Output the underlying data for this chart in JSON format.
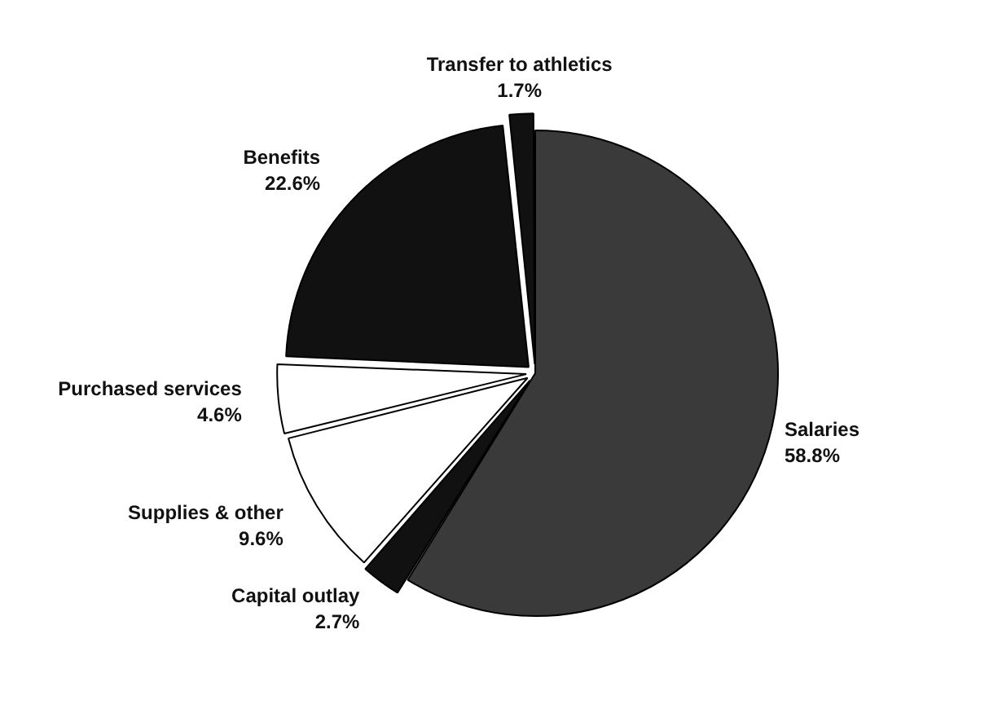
{
  "chart_data": {
    "type": "pie",
    "categories": [
      "Salaries",
      "Capital outlay",
      "Supplies & other",
      "Purchased services",
      "Benefits",
      "Transfer to athletics"
    ],
    "values": [
      58.8,
      2.7,
      9.6,
      4.6,
      22.6,
      1.7
    ],
    "colors": [
      "#3a3a3a",
      "#111111",
      "#ffffff",
      "#ffffff",
      "#111111",
      "#111111"
    ],
    "value_labels": [
      "58.8%",
      "2.7%",
      "9.6%",
      "4.6%",
      "22.6%",
      "1.7%"
    ],
    "legend": false
  }
}
